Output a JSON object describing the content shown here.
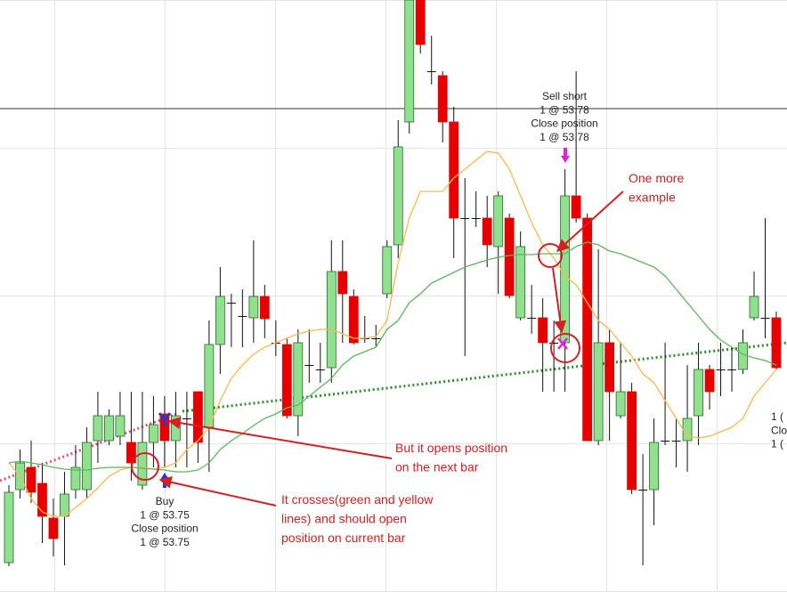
{
  "chart_data": {
    "type": "candlestick",
    "ylim": [
      53.7335,
      53.8
    ],
    "up_color": "#90e090",
    "down_color": "#e60000",
    "hline": 53.7878,
    "open": [
      53.7368,
      53.745,
      53.7475,
      53.7457,
      53.7418,
      53.742,
      53.745,
      53.745,
      53.7505,
      53.7505,
      53.751,
      53.7503,
      53.7455,
      53.7503,
      53.7535,
      53.7505,
      53.753,
      53.756,
      53.752,
      53.7613,
      53.766,
      53.7645,
      53.7643,
      53.7667,
      53.7615,
      53.7613,
      53.7533,
      53.759,
      53.7585,
      53.7587,
      53.7695,
      53.7667,
      53.762,
      53.762,
      53.767,
      53.7725,
      53.7863,
      53.8,
      53.792,
      53.7915,
      53.7863,
      53.7755,
      53.7755,
      53.7755,
      53.7723,
      53.7755,
      53.7643,
      53.7643,
      53.7643,
      53.7615,
      53.7615,
      53.778,
      53.7755,
      53.7505,
      53.7615,
      53.7533,
      53.756,
      53.745,
      53.745,
      53.7505,
      53.7505,
      53.7505,
      53.7533,
      53.7585,
      53.7585,
      53.7585,
      53.7585,
      53.7643,
      53.7643,
      53.7643
    ],
    "high": [
      53.7455,
      53.7495,
      53.7505,
      53.748,
      53.744,
      53.747,
      53.75,
      53.752,
      53.756,
      53.754,
      53.756,
      53.756,
      53.756,
      53.7555,
      53.7555,
      53.756,
      53.756,
      53.756,
      53.764,
      53.77,
      53.767,
      53.7675,
      53.773,
      53.768,
      53.764,
      53.762,
      53.763,
      53.763,
      53.7615,
      53.773,
      53.773,
      53.7675,
      53.7645,
      53.7635,
      53.773,
      53.7865,
      53.8,
      53.8,
      53.796,
      53.792,
      53.788,
      53.78,
      53.7785,
      53.778,
      53.7785,
      53.776,
      53.774,
      53.768,
      53.7665,
      53.764,
      53.781,
      53.792,
      53.776,
      53.772,
      53.763,
      53.7615,
      53.757,
      53.749,
      53.753,
      53.7615,
      53.753,
      53.759,
      53.7615,
      53.759,
      53.7615,
      53.761,
      53.763,
      53.7695,
      53.7755,
      53.765
    ],
    "low": [
      53.7364,
      53.744,
      53.7435,
      53.739,
      53.7375,
      53.7365,
      53.744,
      53.744,
      53.748,
      53.75,
      53.75,
      53.746,
      53.745,
      53.7475,
      53.7475,
      53.7475,
      53.7475,
      53.748,
      53.747,
      53.758,
      53.761,
      53.761,
      53.7615,
      53.762,
      53.76,
      53.753,
      53.751,
      53.757,
      53.757,
      53.757,
      53.7615,
      53.7613,
      53.7615,
      53.761,
      53.7665,
      53.771,
      53.785,
      53.794,
      53.7905,
      53.784,
      53.771,
      53.76,
      53.7745,
      53.77,
      53.767,
      53.7665,
      53.764,
      53.7625,
      53.756,
      53.756,
      53.756,
      53.775,
      53.7505,
      53.75,
      53.7505,
      53.753,
      53.7445,
      53.7365,
      53.741,
      53.75,
      53.7475,
      53.747,
      53.75,
      53.754,
      53.7555,
      53.756,
      53.758,
      53.764,
      53.762,
      53.7585
    ],
    "close": [
      53.7447,
      53.748,
      53.7447,
      53.742,
      53.7395,
      53.7445,
      53.7475,
      53.7503,
      53.7533,
      53.7533,
      53.7533,
      53.748,
      53.7503,
      53.7523,
      53.7505,
      53.7533,
      53.753,
      53.7503,
      53.7613,
      53.7667,
      53.766,
      53.7645,
      53.7667,
      53.7642,
      53.7615,
      53.7533,
      53.7615,
      53.759,
      53.7585,
      53.7695,
      53.767,
      53.7615,
      53.762,
      53.762,
      53.7723,
      53.7835,
      53.8,
      53.795,
      53.792,
      53.7863,
      53.7755,
      53.7755,
      53.7755,
      53.7725,
      53.778,
      53.7668,
      53.7723,
      53.7643,
      53.7615,
      53.7615,
      53.778,
      53.7755,
      53.7505,
      53.7615,
      53.756,
      53.756,
      53.745,
      53.745,
      53.7503,
      53.7505,
      53.7505,
      53.753,
      53.7585,
      53.756,
      53.7585,
      53.7585,
      53.7615,
      53.7667,
      53.7643,
      53.7587
    ],
    "lines": [
      {
        "color": "#ffb84d",
        "values": [
          53.748,
          53.7465,
          53.744,
          53.7425,
          53.742,
          53.742,
          53.743,
          53.744,
          53.7452,
          53.7465,
          53.7472,
          53.7475,
          53.7475,
          53.7473,
          53.7475,
          53.748,
          53.7495,
          53.7505,
          53.752,
          53.755,
          53.7575,
          53.759,
          53.7602,
          53.761,
          53.7615,
          53.762,
          53.7625,
          53.7628,
          53.763,
          53.763,
          53.7625,
          53.762,
          53.762,
          53.7622,
          53.764,
          53.7705,
          53.7755,
          53.7785,
          53.7785,
          53.7785,
          53.78,
          53.781,
          53.782,
          53.783,
          53.7828,
          53.781,
          53.778,
          53.775,
          53.7725,
          53.771,
          53.769,
          53.768,
          53.766,
          53.764,
          53.763,
          53.7615,
          53.76,
          53.758,
          53.757,
          53.755,
          53.753,
          53.751,
          53.7508,
          53.751,
          53.7515,
          53.752,
          53.753,
          53.7555,
          53.757,
          53.7585
        ]
      },
      {
        "color": "#5cb85c",
        "values": [
          53.748,
          53.7482,
          53.748,
          53.7478,
          53.7475,
          53.7473,
          53.7472,
          53.7472,
          53.7474,
          53.7475,
          53.7475,
          53.7475,
          53.7474,
          53.7473,
          53.7472,
          53.747,
          53.747,
          53.7472,
          53.748,
          53.7495,
          53.7505,
          53.7513,
          53.7522,
          53.753,
          53.7535,
          53.7542,
          53.7545,
          53.7555,
          53.7565,
          53.7575,
          53.759,
          53.76,
          53.7605,
          53.761,
          53.763,
          53.764,
          53.766,
          53.767,
          53.7682,
          53.7688,
          53.7694,
          53.77,
          53.7704,
          53.7708,
          53.7711,
          53.7713,
          53.7714,
          53.7714,
          53.7715,
          53.7715,
          53.7715,
          53.7723,
          53.7728,
          53.7725,
          53.7718,
          53.7715,
          53.771,
          53.7705,
          53.77,
          53.769,
          53.7675,
          53.766,
          53.7645,
          53.763,
          53.7618,
          53.761,
          53.7602,
          53.7598,
          53.7595,
          53.759
        ]
      }
    ],
    "annotations": {
      "sell_label": [
        "Sell short",
        "1 @ 53.78",
        "Close position",
        "1 @ 53.78"
      ],
      "buy_label": [
        "Buy",
        "1 @ 53.75",
        "Close position",
        "1 @ 53.75"
      ],
      "right_label": [
        "1 (",
        "Clos",
        "1 ("
      ],
      "notes": [
        [
          "One more",
          "example"
        ],
        [
          "But it opens position",
          "on the next bar"
        ],
        [
          "It crosses(green and yellow",
          "lines) and should open",
          "position on current bar"
        ]
      ]
    }
  }
}
